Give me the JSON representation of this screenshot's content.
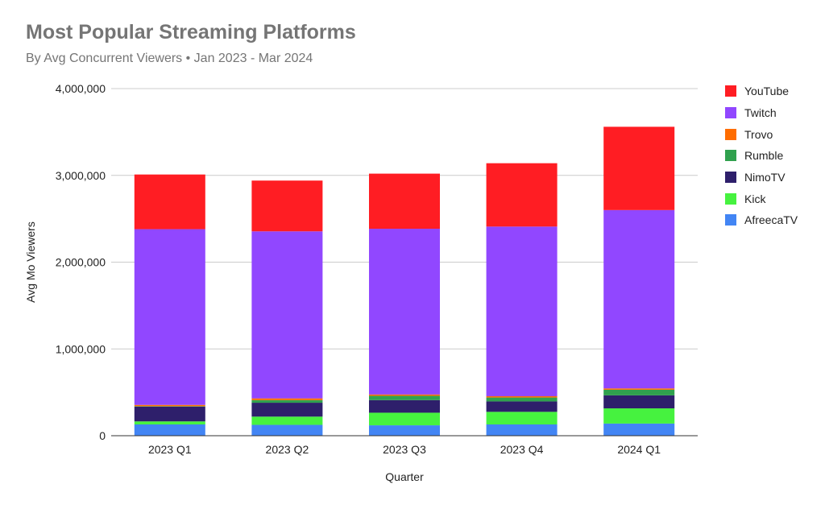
{
  "chart_data": {
    "type": "stacked-bar",
    "title": "Most Popular Streaming Platforms",
    "subtitle": "By Avg Concurrent Viewers • Jan 2023 - Mar 2024",
    "xlabel": "Quarter",
    "ylabel": "Avg Mo Viewers",
    "ylim": [
      0,
      4000000
    ],
    "y_ticks": [
      0,
      1000000,
      2000000,
      3000000,
      4000000
    ],
    "y_tick_labels": [
      "0",
      "1,000,000",
      "2,000,000",
      "3,000,000",
      "4,000,000"
    ],
    "categories": [
      "2023 Q1",
      "2023 Q2",
      "2023 Q3",
      "2023 Q4",
      "2024 Q1"
    ],
    "legend_position": "right",
    "series": [
      {
        "name": "AfreecaTV",
        "color": "#4285f4",
        "values": [
          130000,
          125000,
          120000,
          130000,
          140000
        ]
      },
      {
        "name": "Kick",
        "color": "#46f23f",
        "values": [
          35000,
          95000,
          145000,
          145000,
          175000
        ]
      },
      {
        "name": "NimoTV",
        "color": "#2e1f6b",
        "values": [
          170000,
          160000,
          145000,
          120000,
          150000
        ]
      },
      {
        "name": "Rumble",
        "color": "#30a14e",
        "values": [
          5000,
          30000,
          50000,
          45000,
          65000
        ]
      },
      {
        "name": "Trovo",
        "color": "#ff6d01",
        "values": [
          15000,
          20000,
          15000,
          15000,
          15000
        ]
      },
      {
        "name": "Twitch",
        "color": "#9147ff",
        "values": [
          2025000,
          1925000,
          1910000,
          1955000,
          2055000
        ]
      },
      {
        "name": "YouTube",
        "color": "#ff1d23",
        "values": [
          630000,
          585000,
          635000,
          730000,
          960000
        ]
      }
    ]
  }
}
